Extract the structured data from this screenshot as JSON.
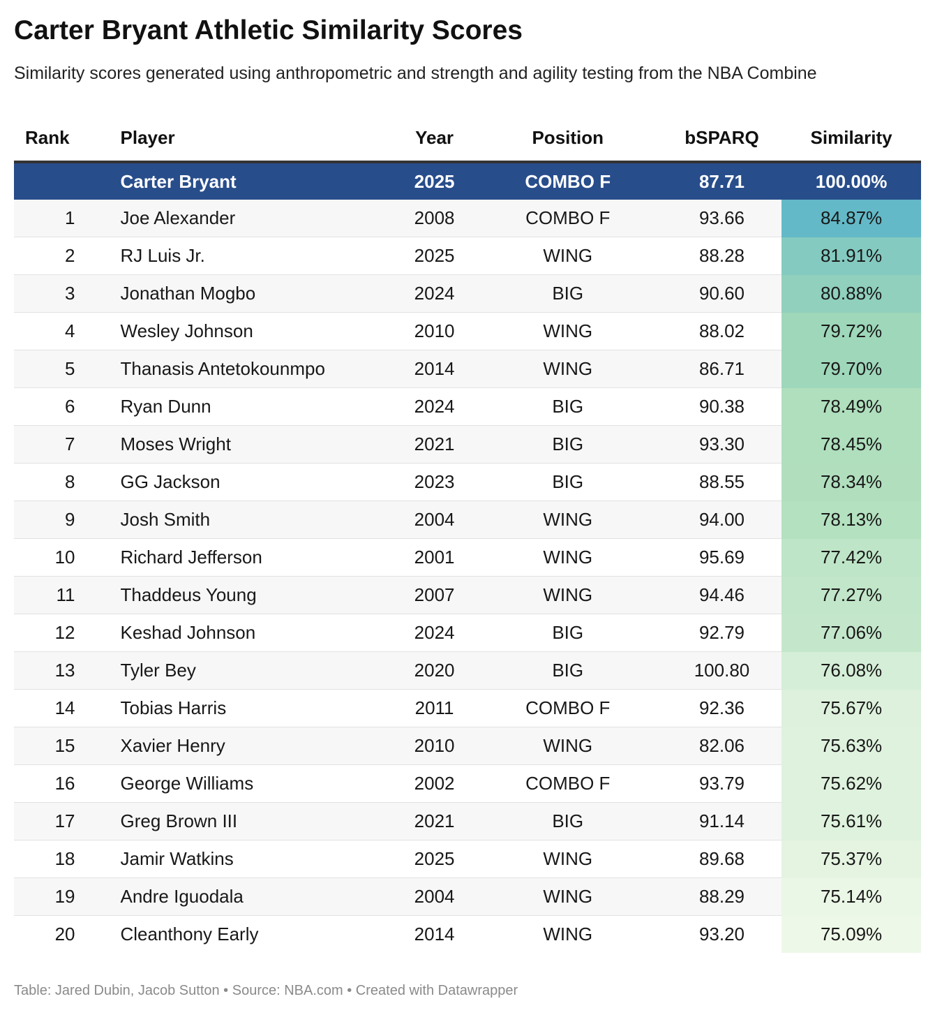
{
  "title": "Carter Bryant Athletic Similarity Scores",
  "subtitle": "Similarity scores generated using anthropometric and strength and agility testing from the NBA Combine",
  "source": "Table: Jared Dubin, Jacob Sutton • Source: NBA.com • Created with Datawrapper",
  "colors": {
    "header_row_bg": "#284d8b",
    "header_row_text": "#ffffff",
    "scale_low": "#eef8e8",
    "scale_high": "#63b9c7"
  },
  "chart_data": {
    "type": "table",
    "columns": [
      "Rank",
      "Player",
      "Year",
      "Position",
      "bSPARQ",
      "Similarity"
    ],
    "reference": {
      "player": "Carter Bryant",
      "year": "2025",
      "position": "COMBO F",
      "bsparq": "87.71",
      "similarity": "100.00%"
    },
    "rows": [
      {
        "rank": "1",
        "player": "Joe Alexander",
        "year": "2008",
        "position": "COMBO F",
        "bsparq": "93.66",
        "similarity": "84.87%"
      },
      {
        "rank": "2",
        "player": "RJ Luis Jr.",
        "year": "2025",
        "position": "WING",
        "bsparq": "88.28",
        "similarity": "81.91%"
      },
      {
        "rank": "3",
        "player": "Jonathan Mogbo",
        "year": "2024",
        "position": "BIG",
        "bsparq": "90.60",
        "similarity": "80.88%"
      },
      {
        "rank": "4",
        "player": "Wesley Johnson",
        "year": "2010",
        "position": "WING",
        "bsparq": "88.02",
        "similarity": "79.72%"
      },
      {
        "rank": "5",
        "player": "Thanasis Antetokounmpo",
        "year": "2014",
        "position": "WING",
        "bsparq": "86.71",
        "similarity": "79.70%"
      },
      {
        "rank": "6",
        "player": "Ryan Dunn",
        "year": "2024",
        "position": "BIG",
        "bsparq": "90.38",
        "similarity": "78.49%"
      },
      {
        "rank": "7",
        "player": "Moses Wright",
        "year": "2021",
        "position": "BIG",
        "bsparq": "93.30",
        "similarity": "78.45%"
      },
      {
        "rank": "8",
        "player": "GG Jackson",
        "year": "2023",
        "position": "BIG",
        "bsparq": "88.55",
        "similarity": "78.34%"
      },
      {
        "rank": "9",
        "player": "Josh Smith",
        "year": "2004",
        "position": "WING",
        "bsparq": "94.00",
        "similarity": "78.13%"
      },
      {
        "rank": "10",
        "player": "Richard Jefferson",
        "year": "2001",
        "position": "WING",
        "bsparq": "95.69",
        "similarity": "77.42%"
      },
      {
        "rank": "11",
        "player": "Thaddeus Young",
        "year": "2007",
        "position": "WING",
        "bsparq": "94.46",
        "similarity": "77.27%"
      },
      {
        "rank": "12",
        "player": "Keshad Johnson",
        "year": "2024",
        "position": "BIG",
        "bsparq": "92.79",
        "similarity": "77.06%"
      },
      {
        "rank": "13",
        "player": "Tyler Bey",
        "year": "2020",
        "position": "BIG",
        "bsparq": "100.80",
        "similarity": "76.08%"
      },
      {
        "rank": "14",
        "player": "Tobias Harris",
        "year": "2011",
        "position": "COMBO F",
        "bsparq": "92.36",
        "similarity": "75.67%"
      },
      {
        "rank": "15",
        "player": "Xavier Henry",
        "year": "2010",
        "position": "WING",
        "bsparq": "82.06",
        "similarity": "75.63%"
      },
      {
        "rank": "16",
        "player": "George Williams",
        "year": "2002",
        "position": "COMBO F",
        "bsparq": "93.79",
        "similarity": "75.62%"
      },
      {
        "rank": "17",
        "player": "Greg Brown III",
        "year": "2021",
        "position": "BIG",
        "bsparq": "91.14",
        "similarity": "75.61%"
      },
      {
        "rank": "18",
        "player": "Jamir Watkins",
        "year": "2025",
        "position": "WING",
        "bsparq": "89.68",
        "similarity": "75.37%"
      },
      {
        "rank": "19",
        "player": "Andre Iguodala",
        "year": "2004",
        "position": "WING",
        "bsparq": "88.29",
        "similarity": "75.14%"
      },
      {
        "rank": "20",
        "player": "Cleanthony Early",
        "year": "2014",
        "position": "WING",
        "bsparq": "93.20",
        "similarity": "75.09%"
      }
    ]
  }
}
